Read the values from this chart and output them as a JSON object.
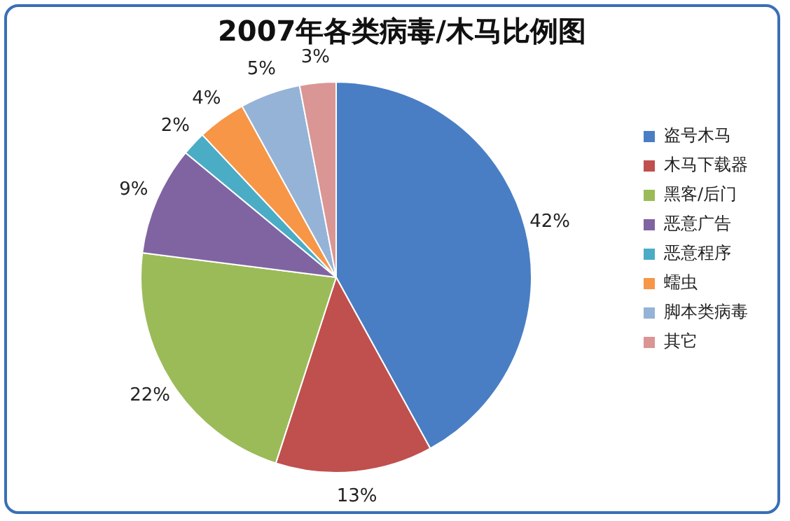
{
  "chart_data": {
    "type": "pie",
    "title": "2007年各类病毒/木马比例图",
    "categories": [
      "盗号木马",
      "木马下载器",
      "黑客/后门",
      "恶意广告",
      "恶意程序",
      "蠕虫",
      "脚本类病毒",
      "其它"
    ],
    "values": [
      42,
      13,
      22,
      9,
      2,
      4,
      5,
      3
    ],
    "value_labels": [
      "42%",
      "13%",
      "22%",
      "9%",
      "2%",
      "4%",
      "5%",
      "3%"
    ],
    "colors": [
      "#4a7ec4",
      "#c0504d",
      "#9bbb59",
      "#8064a2",
      "#4bacc6",
      "#f79646",
      "#95b3d7",
      "#d99694"
    ],
    "legend": "right"
  }
}
